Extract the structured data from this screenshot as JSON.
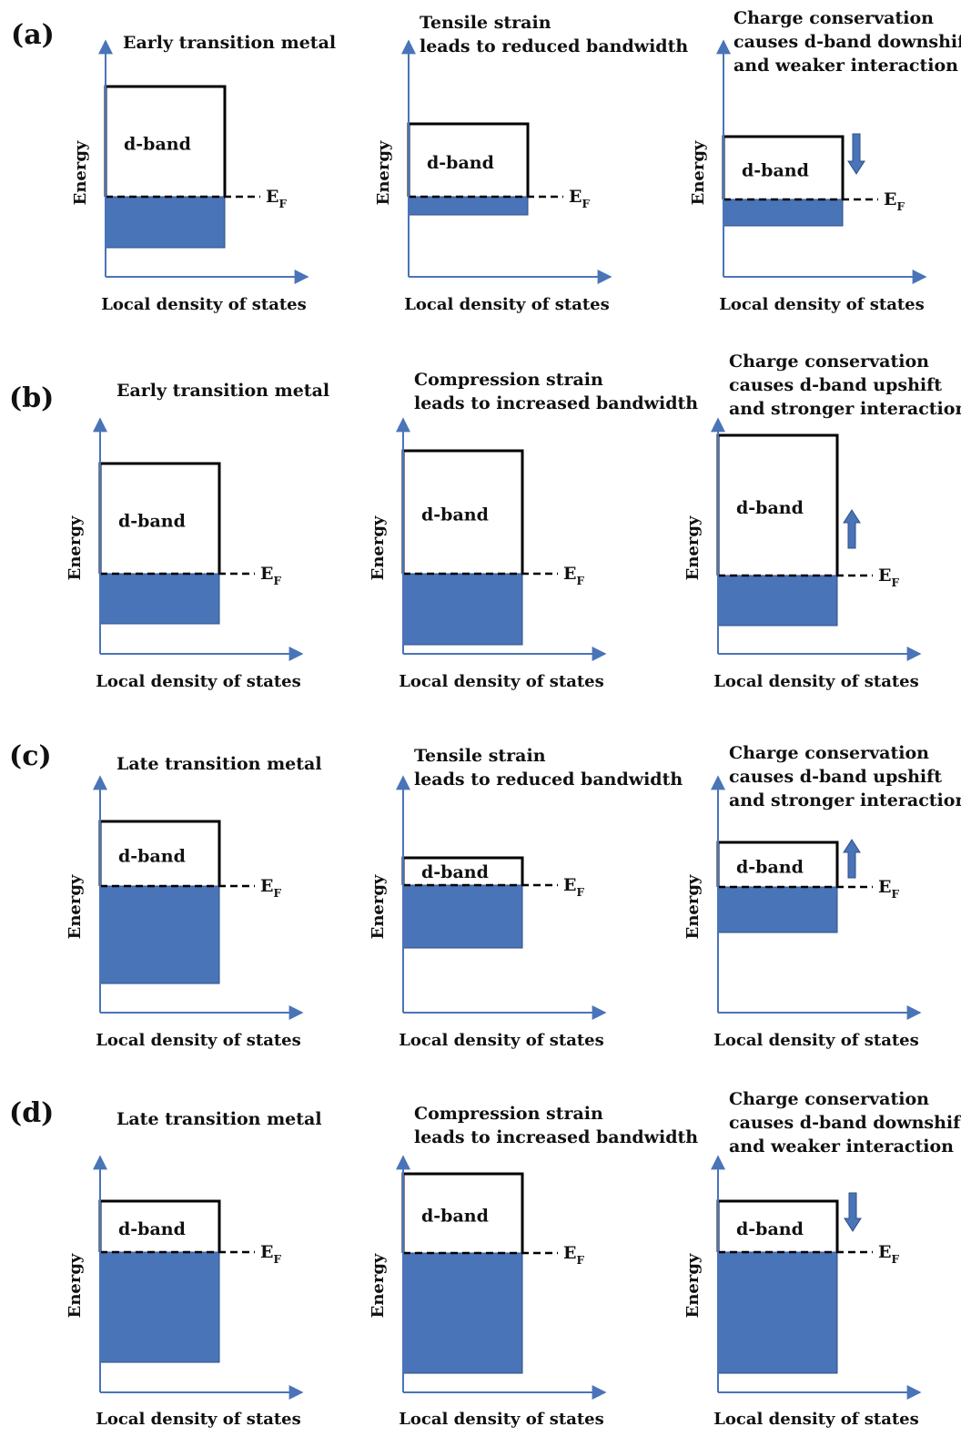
{
  "colors": {
    "filled_states": "#4a74b8",
    "axis": "#4a74b8",
    "arrow": "#4a74b8",
    "band_outline": "#000000",
    "text": "#111111"
  },
  "common": {
    "y_axis_label": "Energy",
    "x_axis_label": "Local density of states",
    "band_label": "d-band",
    "fermi_label": "E",
    "fermi_subscript": "F"
  },
  "rows": [
    {
      "label": "(a)",
      "panels": [
        {
          "title": [
            "Early transition metal"
          ],
          "arrow": "none"
        },
        {
          "title": [
            "Tensile strain",
            "leads to reduced bandwidth"
          ],
          "arrow": "none"
        },
        {
          "title": [
            "Charge conservation",
            "causes d-band downshift",
            "and weaker interaction"
          ],
          "arrow": "down"
        }
      ]
    },
    {
      "label": "(b)",
      "panels": [
        {
          "title": [
            "Early transition metal"
          ],
          "arrow": "none"
        },
        {
          "title": [
            "Compression strain",
            "leads to increased bandwidth"
          ],
          "arrow": "none"
        },
        {
          "title": [
            "Charge conservation",
            "causes d-band upshift",
            "and stronger interaction"
          ],
          "arrow": "up"
        }
      ]
    },
    {
      "label": "(c)",
      "panels": [
        {
          "title": [
            "Late transition metal"
          ],
          "arrow": "none"
        },
        {
          "title": [
            "Tensile strain",
            "leads to reduced bandwidth"
          ],
          "arrow": "none"
        },
        {
          "title": [
            "Charge conservation",
            "causes d-band upshift",
            "and stronger interaction"
          ],
          "arrow": "up"
        }
      ]
    },
    {
      "label": "(d)",
      "panels": [
        {
          "title": [
            "Late transition metal"
          ],
          "arrow": "none"
        },
        {
          "title": [
            "Compression strain",
            "leads to increased bandwidth"
          ],
          "arrow": "none"
        },
        {
          "title": [
            "Charge conservation",
            "causes d-band downshift",
            "and weaker interaction"
          ],
          "arrow": "down"
        }
      ]
    }
  ]
}
